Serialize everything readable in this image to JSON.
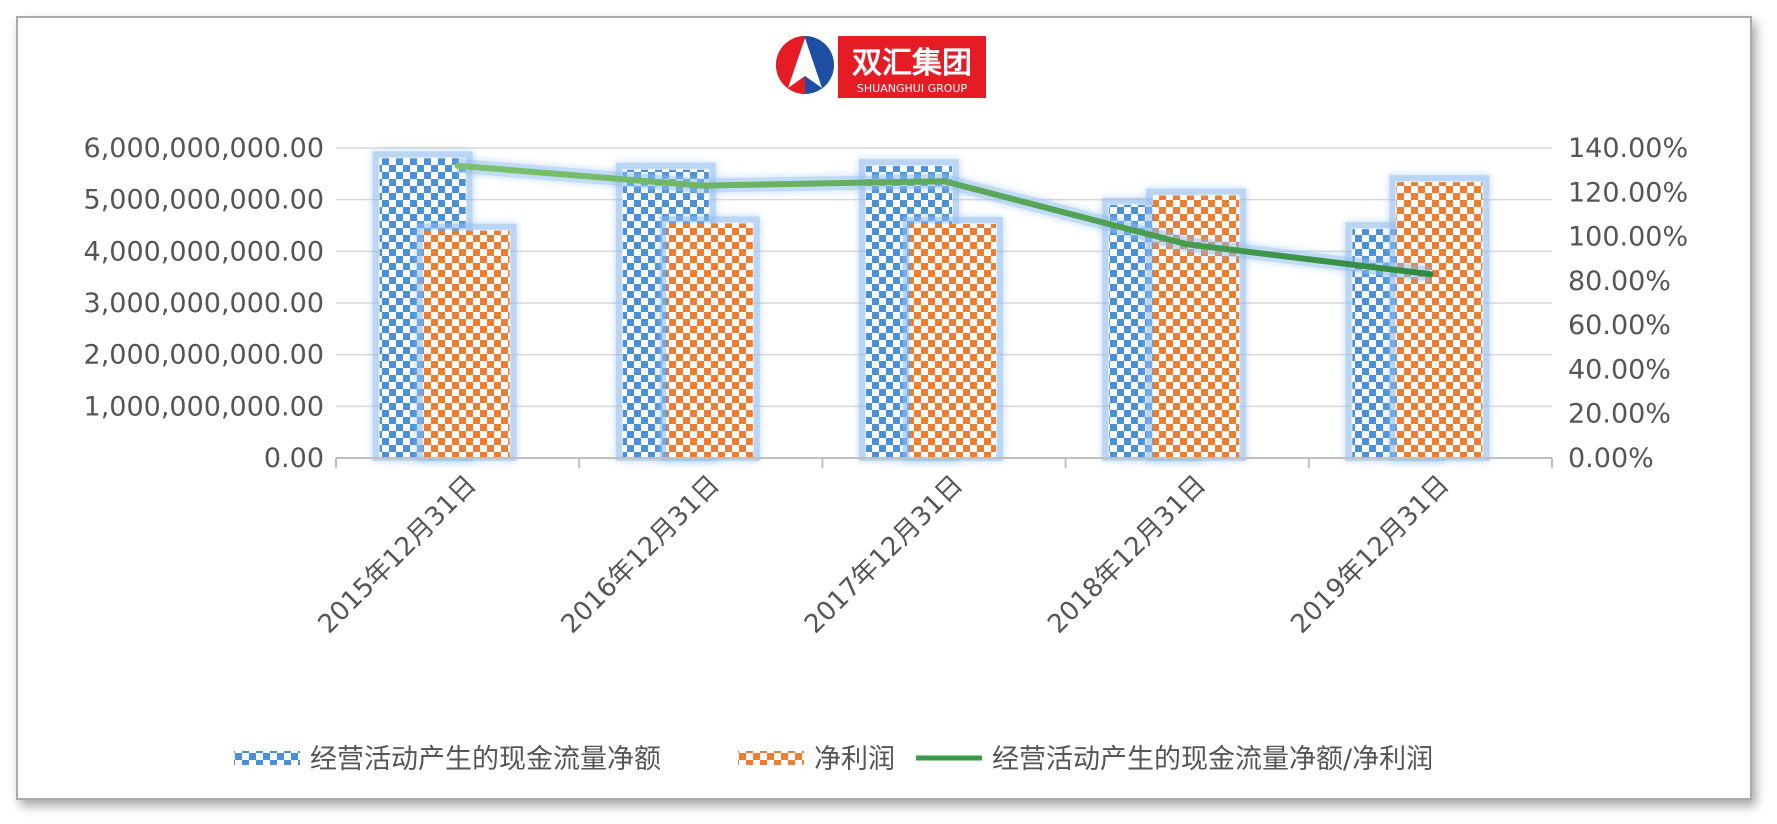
{
  "logo": {
    "cn_text": "双汇集团",
    "en_text": "SHUANGHUI GROUP",
    "colors": {
      "red": "#e51c23",
      "blue": "#1f4fa3"
    }
  },
  "chart_data": {
    "type": "bar",
    "categories": [
      "2015年12月31日",
      "2016年12月31日",
      "2017年12月31日",
      "2018年12月31日",
      "2019年12月31日"
    ],
    "series": [
      {
        "name": "经营活动产生的现金流量净额",
        "type": "bar",
        "axis": "left",
        "color": "#4a90d9",
        "values": [
          5800000000,
          5580000000,
          5650000000,
          4900000000,
          4430000000
        ]
      },
      {
        "name": "净利润",
        "type": "bar",
        "axis": "left",
        "color": "#ed7d31",
        "values": [
          4400000000,
          4540000000,
          4530000000,
          5080000000,
          5340000000
        ]
      },
      {
        "name": "经营活动产生的现金流量净额/净利润",
        "type": "line",
        "axis": "right",
        "color": "#3a9a4a",
        "values": [
          1.32,
          1.23,
          1.25,
          0.965,
          0.83
        ]
      }
    ],
    "y_left": {
      "min": 0,
      "max": 6000000000,
      "ticks": [
        "0.00",
        "1,000,000,000.00",
        "2,000,000,000.00",
        "3,000,000,000.00",
        "4,000,000,000.00",
        "5,000,000,000.00",
        "6,000,000,000.00"
      ]
    },
    "y_right": {
      "min": 0,
      "max": 1.4,
      "ticks": [
        "0.00%",
        "20.00%",
        "40.00%",
        "60.00%",
        "80.00%",
        "100.00%",
        "120.00%",
        "140.00%"
      ]
    },
    "grid": true,
    "legend_position": "bottom",
    "bar_pattern": "checkered"
  }
}
